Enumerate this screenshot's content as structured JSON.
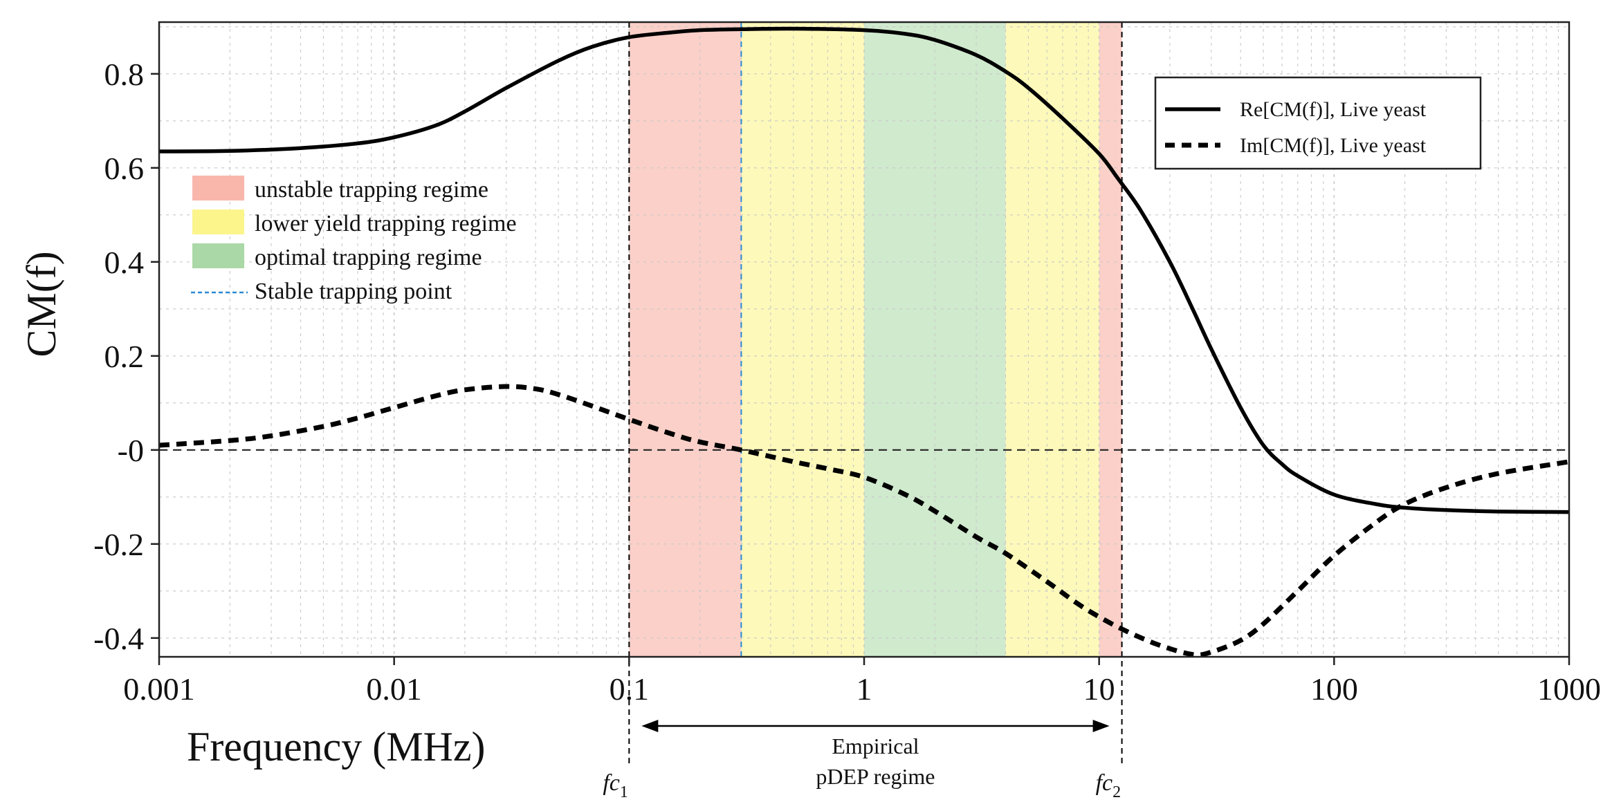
{
  "chart_data": {
    "type": "line",
    "x_scale": "log",
    "xlabel": "Frequency (MHz)",
    "ylabel": "CM(f)",
    "xlim": [
      0.001,
      1000
    ],
    "ylim": [
      -0.44,
      0.91
    ],
    "x_ticks": [
      {
        "value": 0.001,
        "label": "0.001"
      },
      {
        "value": 0.01,
        "label": "0.01"
      },
      {
        "value": 0.1,
        "label": "0.1"
      },
      {
        "value": 1,
        "label": "1"
      },
      {
        "value": 10,
        "label": "10"
      },
      {
        "value": 100,
        "label": "100"
      },
      {
        "value": 1000,
        "label": "1000"
      }
    ],
    "y_ticks": [
      {
        "value": 0.8,
        "label": "0.8"
      },
      {
        "value": 0.6,
        "label": "0.6"
      },
      {
        "value": 0.4,
        "label": "0.4"
      },
      {
        "value": 0.2,
        "label": "0.2"
      },
      {
        "value": 0,
        "label": "-0"
      },
      {
        "value": -0.2,
        "label": "-0.2"
      },
      {
        "value": -0.4,
        "label": "-0.4"
      }
    ],
    "grid": true,
    "zero_line": true,
    "series": [
      {
        "name": "Re[CM(f)], Live yeast",
        "style": "solid",
        "color": "#000000",
        "points": [
          [
            0.001,
            0.635
          ],
          [
            0.002,
            0.636
          ],
          [
            0.004,
            0.642
          ],
          [
            0.007,
            0.652
          ],
          [
            0.01,
            0.665
          ],
          [
            0.015,
            0.69
          ],
          [
            0.02,
            0.72
          ],
          [
            0.03,
            0.77
          ],
          [
            0.05,
            0.828
          ],
          [
            0.07,
            0.858
          ],
          [
            0.1,
            0.878
          ],
          [
            0.15,
            0.888
          ],
          [
            0.2,
            0.893
          ],
          [
            0.3,
            0.895
          ],
          [
            0.5,
            0.896
          ],
          [
            1,
            0.893
          ],
          [
            1.5,
            0.885
          ],
          [
            2,
            0.872
          ],
          [
            3,
            0.84
          ],
          [
            4,
            0.805
          ],
          [
            5,
            0.77
          ],
          [
            7,
            0.705
          ],
          [
            10,
            0.63
          ],
          [
            12,
            0.578
          ],
          [
            15,
            0.51
          ],
          [
            20,
            0.4
          ],
          [
            25,
            0.3
          ],
          [
            30,
            0.215
          ],
          [
            40,
            0.09
          ],
          [
            50,
            0.01
          ],
          [
            60,
            -0.03
          ],
          [
            70,
            -0.055
          ],
          [
            100,
            -0.095
          ],
          [
            150,
            -0.115
          ],
          [
            200,
            -0.123
          ],
          [
            300,
            -0.128
          ],
          [
            500,
            -0.131
          ],
          [
            1000,
            -0.132
          ]
        ]
      },
      {
        "name": "Im[CM(f)], Live yeast",
        "style": "dashed",
        "color": "#000000",
        "points": [
          [
            0.001,
            0.01
          ],
          [
            0.002,
            0.02
          ],
          [
            0.003,
            0.03
          ],
          [
            0.005,
            0.05
          ],
          [
            0.007,
            0.068
          ],
          [
            0.01,
            0.09
          ],
          [
            0.015,
            0.115
          ],
          [
            0.02,
            0.128
          ],
          [
            0.03,
            0.135
          ],
          [
            0.04,
            0.13
          ],
          [
            0.05,
            0.118
          ],
          [
            0.07,
            0.093
          ],
          [
            0.1,
            0.065
          ],
          [
            0.15,
            0.035
          ],
          [
            0.2,
            0.017
          ],
          [
            0.3,
            0.0
          ],
          [
            0.5,
            -0.025
          ],
          [
            0.7,
            -0.04
          ],
          [
            1,
            -0.058
          ],
          [
            1.5,
            -0.095
          ],
          [
            2,
            -0.13
          ],
          [
            3,
            -0.185
          ],
          [
            4,
            -0.22
          ],
          [
            6,
            -0.28
          ],
          [
            8,
            -0.325
          ],
          [
            10,
            -0.355
          ],
          [
            13,
            -0.385
          ],
          [
            18,
            -0.415
          ],
          [
            25,
            -0.435
          ],
          [
            30,
            -0.43
          ],
          [
            40,
            -0.405
          ],
          [
            50,
            -0.37
          ],
          [
            70,
            -0.3
          ],
          [
            100,
            -0.225
          ],
          [
            150,
            -0.155
          ],
          [
            200,
            -0.115
          ],
          [
            300,
            -0.08
          ],
          [
            500,
            -0.05
          ],
          [
            1000,
            -0.025
          ]
        ]
      }
    ],
    "regions": [
      {
        "name": "unstable trapping regime",
        "color": "#f9b7ac",
        "opacity": 0.65,
        "x_from": 0.1,
        "x_to": 0.3
      },
      {
        "name": "lower yield trapping regime",
        "color": "#fbf58c",
        "opacity": 0.6,
        "x_from": 0.3,
        "x_to": 1.0
      },
      {
        "name": "optimal trapping regime",
        "color": "#aad8a6",
        "opacity": 0.55,
        "x_from": 1.0,
        "x_to": 4.0
      },
      {
        "name": "lower yield trapping regime",
        "color": "#fbf58c",
        "opacity": 0.6,
        "x_from": 4.0,
        "x_to": 10.0
      },
      {
        "name": "unstable trapping regime",
        "color": "#f9b7ac",
        "opacity": 0.65,
        "x_from": 10.0,
        "x_to": 12.5
      }
    ],
    "vertical_lines": [
      {
        "x": 0.1,
        "style": "dashed",
        "color": "#000000",
        "label": "fc1"
      },
      {
        "x": 0.3,
        "style": "dashed",
        "color": "#2a8ad6",
        "label": "Stable trapping point"
      },
      {
        "x": 12.5,
        "style": "dashed",
        "color": "#000000",
        "label": "fc2"
      }
    ],
    "cutoffs": [
      {
        "x": 0.1,
        "symbol": "fc",
        "subscript": "1"
      },
      {
        "x": 12.5,
        "symbol": "fc",
        "subscript": "2"
      }
    ],
    "range_annotation": {
      "x_from": 0.1,
      "x_to": 12.5,
      "line1": "Empirical",
      "line2": "pDEP regime"
    },
    "region_legend": {
      "position": "upper-left",
      "entries": [
        {
          "label": "unstable trapping regime",
          "color": "#f9b7ac",
          "kind": "patch"
        },
        {
          "label": "lower yield trapping regime",
          "color": "#fbf58c",
          "kind": "patch"
        },
        {
          "label": "optimal trapping regime",
          "color": "#aad8a6",
          "kind": "patch"
        },
        {
          "label": "Stable trapping point",
          "color": "#2a8ad6",
          "kind": "dashed-line"
        }
      ]
    },
    "series_legend": {
      "position": "top-right",
      "entries": [
        {
          "label": "Re[CM(f)], Live yeast",
          "style": "solid"
        },
        {
          "label": "Im[CM(f)], Live yeast",
          "style": "dashed"
        }
      ]
    }
  }
}
